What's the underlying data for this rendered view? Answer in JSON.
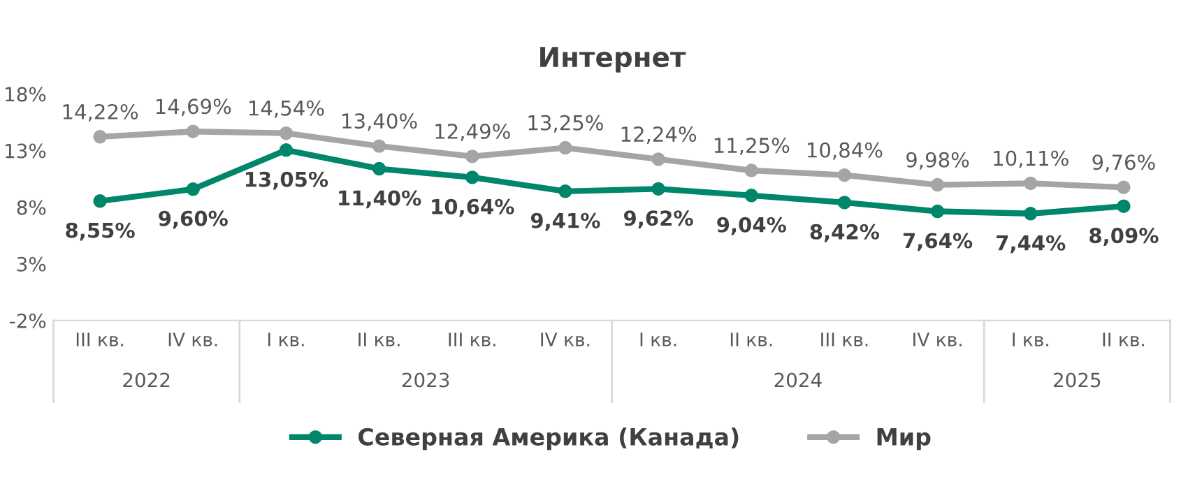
{
  "chart_data": {
    "type": "line",
    "title": "Интернет",
    "categories": [
      "III кв.",
      "IV кв.",
      "I кв.",
      "II кв.",
      "III кв.",
      "IV кв.",
      "I кв.",
      "II кв.",
      "III кв.",
      "IV кв.",
      "I кв.",
      "II кв."
    ],
    "annotations": [
      "2022",
      "2023",
      "2024",
      "2025"
    ],
    "series": [
      {
        "name": "Северная Америка (Канада)",
        "color": "#00866a",
        "values": [
          8.55,
          9.6,
          13.05,
          11.4,
          10.64,
          9.41,
          9.62,
          9.04,
          8.42,
          7.64,
          7.44,
          8.09
        ],
        "value_labels": [
          "8,55%",
          "9,60%",
          "13,05%",
          "11,40%",
          "10,64%",
          "9,41%",
          "9,62%",
          "9,04%",
          "8,42%",
          "7,64%",
          "7,44%",
          "8,09%"
        ]
      },
      {
        "name": "Мир",
        "color": "#a5a5a5",
        "values": [
          14.22,
          14.69,
          14.54,
          13.4,
          12.49,
          13.25,
          12.24,
          11.25,
          10.84,
          9.98,
          10.11,
          9.76
        ],
        "value_labels": [
          "14,22%",
          "14,69%",
          "14,54%",
          "13,40%",
          "12,49%",
          "13,25%",
          "12,24%",
          "11,25%",
          "10,84%",
          "9,98%",
          "10,11%",
          "9,76%"
        ]
      }
    ],
    "ylim": [
      -2,
      18
    ],
    "yticks": [
      {
        "value": -2,
        "label": "-2%"
      },
      {
        "value": 3,
        "label": "3%"
      },
      {
        "value": 8,
        "label": "8%"
      },
      {
        "value": 13,
        "label": "13%"
      },
      {
        "value": 18,
        "label": "18%"
      }
    ],
    "grid": false,
    "legend": "bottom",
    "marker": "circle",
    "line_style": "solid"
  }
}
